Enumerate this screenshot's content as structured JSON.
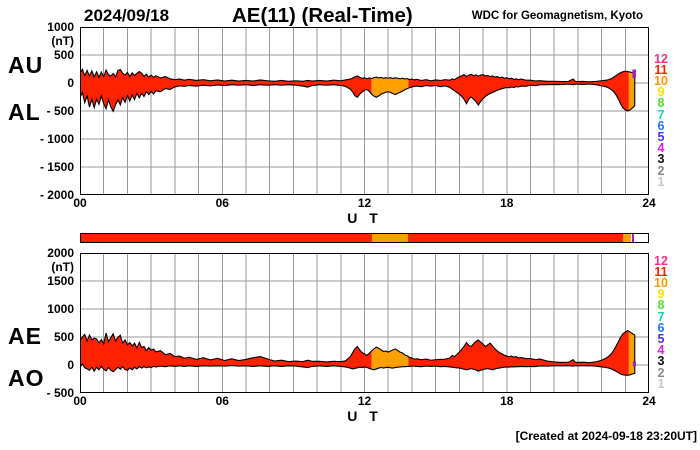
{
  "header": {
    "date": "2024/09/18",
    "title": "AE(11) (Real-Time)",
    "credit": "WDC for Geomagnetism, Kyoto"
  },
  "footer": {
    "created": "[Created at 2024-09-18 23:20UT]"
  },
  "colors": {
    "red": "#FF2200",
    "orange": "#FFA000",
    "purple": "#9623C8",
    "grid": "#999999",
    "frame": "#000000"
  },
  "legend": {
    "levels": [
      {
        "label": "12",
        "color": "#F2308C"
      },
      {
        "label": "11",
        "color": "#FF2200"
      },
      {
        "label": "10",
        "color": "#FF9900"
      },
      {
        "label": "9",
        "color": "#FFE000"
      },
      {
        "label": "8",
        "color": "#55DD33"
      },
      {
        "label": "7",
        "color": "#11D5B8"
      },
      {
        "label": "6",
        "color": "#2277EE"
      },
      {
        "label": "5",
        "color": "#4433EE"
      },
      {
        "label": "4",
        "color": "#DD22DD"
      },
      {
        "label": "3",
        "color": "#111111"
      },
      {
        "label": "2",
        "color": "#888888"
      },
      {
        "label": "1",
        "color": "#C8C8C8"
      }
    ]
  },
  "x_axis": {
    "label": "U T",
    "ticks": [
      {
        "label": "00",
        "hour": 0
      },
      {
        "label": "06",
        "hour": 6
      },
      {
        "label": "12",
        "hour": 12
      },
      {
        "label": "18",
        "hour": 18
      },
      {
        "label": "24",
        "hour": 24
      }
    ]
  },
  "activity_bar": {
    "segments": [
      {
        "t0": 0,
        "t1": 12.3,
        "color": "red"
      },
      {
        "t0": 12.3,
        "t1": 13.85,
        "color": "orange"
      },
      {
        "t0": 13.85,
        "t1": 22.95,
        "color": "red"
      },
      {
        "t0": 22.95,
        "t1": 23.3,
        "color": "orange"
      },
      {
        "t0": 23.3,
        "t1": 23.42,
        "color": "purple"
      }
    ]
  },
  "chart_data": {
    "type": "area",
    "xlabel": "U T",
    "x_unit": "hours",
    "zones": [
      {
        "t0": 0,
        "t1": 12.3,
        "color": "red"
      },
      {
        "t0": 12.3,
        "t1": 13.85,
        "color": "orange"
      },
      {
        "t0": 13.85,
        "t1": 23.15,
        "color": "red"
      },
      {
        "t0": 23.15,
        "t1": 23.45,
        "color": "orange"
      }
    ],
    "panels": [
      {
        "name": "AU/AL",
        "left_labels": [
          "AU",
          "AL"
        ],
        "unit": "(nT)",
        "ylim": [
          -2000,
          1000
        ],
        "series_columns": [
          1,
          2
        ],
        "yticks": [
          {
            "label": "1000",
            "value": 1000
          },
          {
            "label": "500",
            "value": 500
          },
          {
            "label": "0",
            "value": 0
          },
          {
            "label": "- 500",
            "value": -500
          },
          {
            "label": "- 1000",
            "value": -1000
          },
          {
            "label": "- 1500",
            "value": -1500
          },
          {
            "label": "- 2000",
            "value": -2000
          }
        ],
        "end_marker": {
          "t0": 23.3,
          "t1": 23.45,
          "v0": 90,
          "v1": 240,
          "color": "purple"
        }
      },
      {
        "name": "AE/AO",
        "left_labels": [
          "AE",
          "AO"
        ],
        "unit": "(nT)",
        "ylim": [
          -500,
          2000
        ],
        "series_columns": [
          3,
          4
        ],
        "yticks": [
          {
            "label": "2000",
            "value": 2000
          },
          {
            "label": "1500",
            "value": 1500
          },
          {
            "label": "1000",
            "value": 1000
          },
          {
            "label": "500",
            "value": 500
          },
          {
            "label": "0",
            "value": 0
          },
          {
            "label": "- 500",
            "value": -500
          }
        ],
        "end_marker": {
          "t0": 23.32,
          "t1": 23.45,
          "v0": -25,
          "v1": 65,
          "color": "purple"
        }
      }
    ],
    "series_names": [
      "AU",
      "AL",
      "AE",
      "AO"
    ],
    "points": [
      [
        0.0,
        170,
        -260,
        430,
        -40
      ],
      [
        0.1,
        245,
        -170,
        500,
        20
      ],
      [
        0.2,
        130,
        -350,
        545,
        -50
      ],
      [
        0.3,
        225,
        -230,
        430,
        -70
      ],
      [
        0.4,
        120,
        -430,
        535,
        -95
      ],
      [
        0.5,
        215,
        -290,
        450,
        -40
      ],
      [
        0.6,
        110,
        -440,
        480,
        -110
      ],
      [
        0.7,
        200,
        -290,
        465,
        -40
      ],
      [
        0.8,
        100,
        -380,
        395,
        -85
      ],
      [
        0.9,
        195,
        -230,
        455,
        -25
      ],
      [
        1.0,
        115,
        -370,
        380,
        -75
      ],
      [
        1.1,
        230,
        -460,
        570,
        -105
      ],
      [
        1.2,
        150,
        -300,
        415,
        -45
      ],
      [
        1.3,
        125,
        -430,
        490,
        -95
      ],
      [
        1.4,
        170,
        -505,
        555,
        -120
      ],
      [
        1.5,
        110,
        -390,
        430,
        -80
      ],
      [
        1.6,
        225,
        -300,
        495,
        -40
      ],
      [
        1.7,
        240,
        -390,
        530,
        -75
      ],
      [
        1.8,
        175,
        -260,
        390,
        -30
      ],
      [
        1.9,
        140,
        -345,
        450,
        -80
      ],
      [
        2.0,
        190,
        -225,
        360,
        -95
      ],
      [
        2.1,
        115,
        -320,
        400,
        -55
      ],
      [
        2.2,
        180,
        -215,
        340,
        -85
      ],
      [
        2.3,
        135,
        -295,
        390,
        -40
      ],
      [
        2.4,
        170,
        -185,
        305,
        -70
      ],
      [
        2.5,
        205,
        -265,
        405,
        -30
      ],
      [
        2.6,
        175,
        -185,
        310,
        -55
      ],
      [
        2.7,
        120,
        -240,
        330,
        -30
      ],
      [
        2.8,
        155,
        -155,
        255,
        -50
      ],
      [
        2.9,
        105,
        -205,
        310,
        -35
      ],
      [
        3.0,
        140,
        -150,
        265,
        -45
      ],
      [
        3.1,
        100,
        -195,
        285,
        -25
      ],
      [
        3.2,
        130,
        -140,
        235,
        -35
      ],
      [
        3.4,
        90,
        -155,
        255,
        -20
      ],
      [
        3.6,
        115,
        -100,
        185,
        -30
      ],
      [
        3.8,
        75,
        -115,
        205,
        -15
      ],
      [
        4.0,
        60,
        -70,
        150,
        -25
      ],
      [
        4.2,
        70,
        -50,
        160,
        -15
      ],
      [
        4.4,
        50,
        -60,
        120,
        -25
      ],
      [
        4.6,
        65,
        -45,
        140,
        -15
      ],
      [
        4.9,
        45,
        -55,
        100,
        -25
      ],
      [
        5.2,
        60,
        -40,
        130,
        -15
      ],
      [
        5.5,
        40,
        -50,
        90,
        -20
      ],
      [
        5.8,
        55,
        -35,
        120,
        -15
      ],
      [
        6.1,
        35,
        -45,
        80,
        -20
      ],
      [
        6.4,
        50,
        -30,
        110,
        -10
      ],
      [
        6.7,
        35,
        -40,
        80,
        -20
      ],
      [
        7.0,
        45,
        -30,
        100,
        -15
      ],
      [
        7.3,
        35,
        -45,
        130,
        -25
      ],
      [
        7.6,
        55,
        -30,
        150,
        -15
      ],
      [
        7.9,
        40,
        -40,
        110,
        -25
      ],
      [
        8.2,
        30,
        -30,
        70,
        -15
      ],
      [
        8.5,
        45,
        -40,
        85,
        -25
      ],
      [
        8.8,
        30,
        -30,
        60,
        -15
      ],
      [
        9.1,
        40,
        -40,
        70,
        -20
      ],
      [
        9.4,
        30,
        -55,
        60,
        -35
      ],
      [
        9.6,
        45,
        -75,
        85,
        -45
      ],
      [
        9.8,
        35,
        -45,
        65,
        -25
      ],
      [
        10.1,
        45,
        -30,
        65,
        -15
      ],
      [
        10.4,
        35,
        -40,
        55,
        -25
      ],
      [
        10.7,
        50,
        -30,
        65,
        -15
      ],
      [
        11.0,
        40,
        -45,
        60,
        -25
      ],
      [
        11.2,
        55,
        -60,
        75,
        -35
      ],
      [
        11.4,
        70,
        -110,
        150,
        -55
      ],
      [
        11.5,
        90,
        -160,
        220,
        -70
      ],
      [
        11.6,
        110,
        -230,
        290,
        -60
      ],
      [
        11.7,
        125,
        -255,
        330,
        -50
      ],
      [
        11.8,
        100,
        -200,
        270,
        -40
      ],
      [
        11.9,
        85,
        -160,
        220,
        -45
      ],
      [
        12.0,
        95,
        -130,
        200,
        -35
      ],
      [
        12.1,
        75,
        -115,
        170,
        -45
      ],
      [
        12.2,
        90,
        -150,
        210,
        -60
      ],
      [
        12.3,
        80,
        -200,
        250,
        -75
      ],
      [
        12.4,
        95,
        -235,
        290,
        -85
      ],
      [
        12.5,
        105,
        -255,
        320,
        -70
      ],
      [
        12.6,
        90,
        -230,
        300,
        -55
      ],
      [
        12.7,
        100,
        -200,
        270,
        -45
      ],
      [
        12.8,
        85,
        -180,
        240,
        -55
      ],
      [
        12.9,
        95,
        -165,
        250,
        -45
      ],
      [
        13.0,
        85,
        -155,
        230,
        -40
      ],
      [
        13.1,
        95,
        -170,
        250,
        -50
      ],
      [
        13.2,
        80,
        -190,
        270,
        -55
      ],
      [
        13.3,
        95,
        -205,
        285,
        -45
      ],
      [
        13.4,
        85,
        -185,
        260,
        -40
      ],
      [
        13.5,
        75,
        -165,
        230,
        -35
      ],
      [
        13.6,
        85,
        -145,
        215,
        -30
      ],
      [
        13.7,
        70,
        -120,
        180,
        -30
      ],
      [
        13.8,
        80,
        -100,
        165,
        -25
      ],
      [
        13.9,
        60,
        -85,
        135,
        -25
      ],
      [
        14.0,
        70,
        -70,
        125,
        -20
      ],
      [
        14.1,
        55,
        -60,
        105,
        -20
      ],
      [
        14.2,
        65,
        -55,
        110,
        -25
      ],
      [
        14.4,
        45,
        -65,
        95,
        -30
      ],
      [
        14.6,
        60,
        -45,
        105,
        -20
      ],
      [
        14.8,
        40,
        -55,
        85,
        -25
      ],
      [
        15.0,
        55,
        -45,
        95,
        -20
      ],
      [
        15.2,
        45,
        -65,
        100,
        -30
      ],
      [
        15.4,
        60,
        -50,
        105,
        -25
      ],
      [
        15.6,
        50,
        -80,
        125,
        -35
      ],
      [
        15.7,
        75,
        -110,
        170,
        -40
      ],
      [
        15.8,
        60,
        -140,
        150,
        -45
      ],
      [
        15.9,
        90,
        -170,
        190,
        -50
      ],
      [
        16.0,
        110,
        -200,
        230,
        -55
      ],
      [
        16.1,
        130,
        -240,
        280,
        -65
      ],
      [
        16.2,
        150,
        -290,
        330,
        -75
      ],
      [
        16.3,
        115,
        -370,
        400,
        -85
      ],
      [
        16.4,
        140,
        -285,
        345,
        -75
      ],
      [
        16.5,
        155,
        -250,
        330,
        -65
      ],
      [
        16.6,
        130,
        -290,
        380,
        -75
      ],
      [
        16.7,
        145,
        -330,
        420,
        -90
      ],
      [
        16.8,
        120,
        -395,
        445,
        -110
      ],
      [
        16.9,
        140,
        -330,
        410,
        -95
      ],
      [
        17.0,
        150,
        -280,
        370,
        -80
      ],
      [
        17.1,
        125,
        -240,
        330,
        -70
      ],
      [
        17.2,
        135,
        -210,
        360,
        -65
      ],
      [
        17.3,
        115,
        -190,
        390,
        -75
      ],
      [
        17.4,
        125,
        -170,
        340,
        -85
      ],
      [
        17.5,
        105,
        -150,
        290,
        -70
      ],
      [
        17.6,
        115,
        -130,
        250,
        -60
      ],
      [
        17.7,
        95,
        -115,
        220,
        -55
      ],
      [
        17.8,
        105,
        -100,
        200,
        -45
      ],
      [
        17.9,
        85,
        -90,
        175,
        -40
      ],
      [
        18.0,
        95,
        -80,
        160,
        -35
      ],
      [
        18.1,
        75,
        -85,
        150,
        -40
      ],
      [
        18.2,
        85,
        -70,
        160,
        -30
      ],
      [
        18.3,
        65,
        -80,
        140,
        -35
      ],
      [
        18.4,
        75,
        -65,
        150,
        -30
      ],
      [
        18.5,
        60,
        -70,
        125,
        -30
      ],
      [
        18.6,
        70,
        -55,
        135,
        -25
      ],
      [
        18.8,
        50,
        -60,
        115,
        -30
      ],
      [
        19.0,
        50,
        -40,
        115,
        -25
      ],
      [
        19.2,
        38,
        -45,
        95,
        -28
      ],
      [
        19.4,
        42,
        -32,
        105,
        -18
      ],
      [
        19.7,
        30,
        -30,
        70,
        -20
      ],
      [
        20.0,
        30,
        -25,
        55,
        -15
      ],
      [
        20.3,
        25,
        -28,
        45,
        -15
      ],
      [
        20.6,
        28,
        -20,
        50,
        -12
      ],
      [
        20.8,
        70,
        -30,
        95,
        -20
      ],
      [
        20.9,
        25,
        -20,
        45,
        -12
      ],
      [
        21.2,
        28,
        -25,
        50,
        -15
      ],
      [
        21.5,
        22,
        -20,
        42,
        -12
      ],
      [
        21.8,
        30,
        -32,
        60,
        -22
      ],
      [
        22.0,
        40,
        -50,
        85,
        -35
      ],
      [
        22.1,
        45,
        -60,
        105,
        -40
      ],
      [
        22.2,
        50,
        -70,
        125,
        -45
      ],
      [
        22.3,
        60,
        -90,
        155,
        -55
      ],
      [
        22.4,
        75,
        -115,
        195,
        -70
      ],
      [
        22.5,
        100,
        -150,
        255,
        -90
      ],
      [
        22.6,
        130,
        -205,
        330,
        -110
      ],
      [
        22.7,
        160,
        -280,
        410,
        -135
      ],
      [
        22.8,
        185,
        -370,
        495,
        -160
      ],
      [
        22.9,
        200,
        -445,
        555,
        -175
      ],
      [
        23.0,
        210,
        -480,
        590,
        -180
      ],
      [
        23.1,
        205,
        -500,
        615,
        -185
      ],
      [
        23.2,
        195,
        -480,
        590,
        -175
      ],
      [
        23.3,
        185,
        -445,
        560,
        -160
      ],
      [
        23.4,
        175,
        -405,
        535,
        -150
      ]
    ]
  }
}
